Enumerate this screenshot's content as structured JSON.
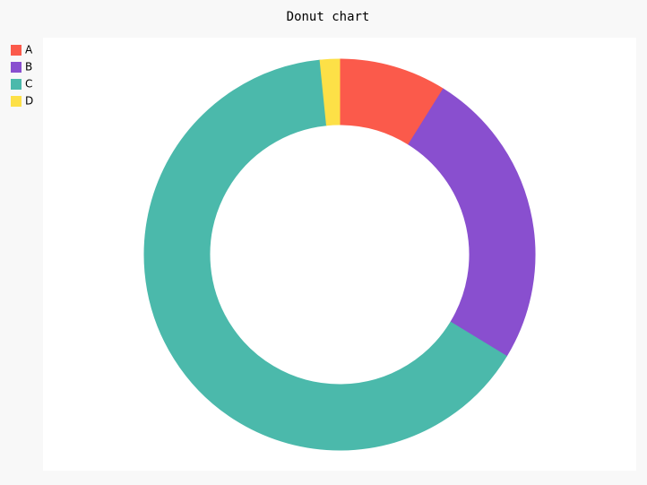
{
  "chart_data": {
    "type": "donut",
    "title": "Donut chart",
    "categories": [
      "A",
      "B",
      "C",
      "D"
    ],
    "values": [
      8.9,
      24.8,
      64.7,
      1.6
    ],
    "colors": [
      "#fb5a4b",
      "#894fcf",
      "#4bb9ab",
      "#fde047"
    ],
    "legend": "top-left"
  }
}
